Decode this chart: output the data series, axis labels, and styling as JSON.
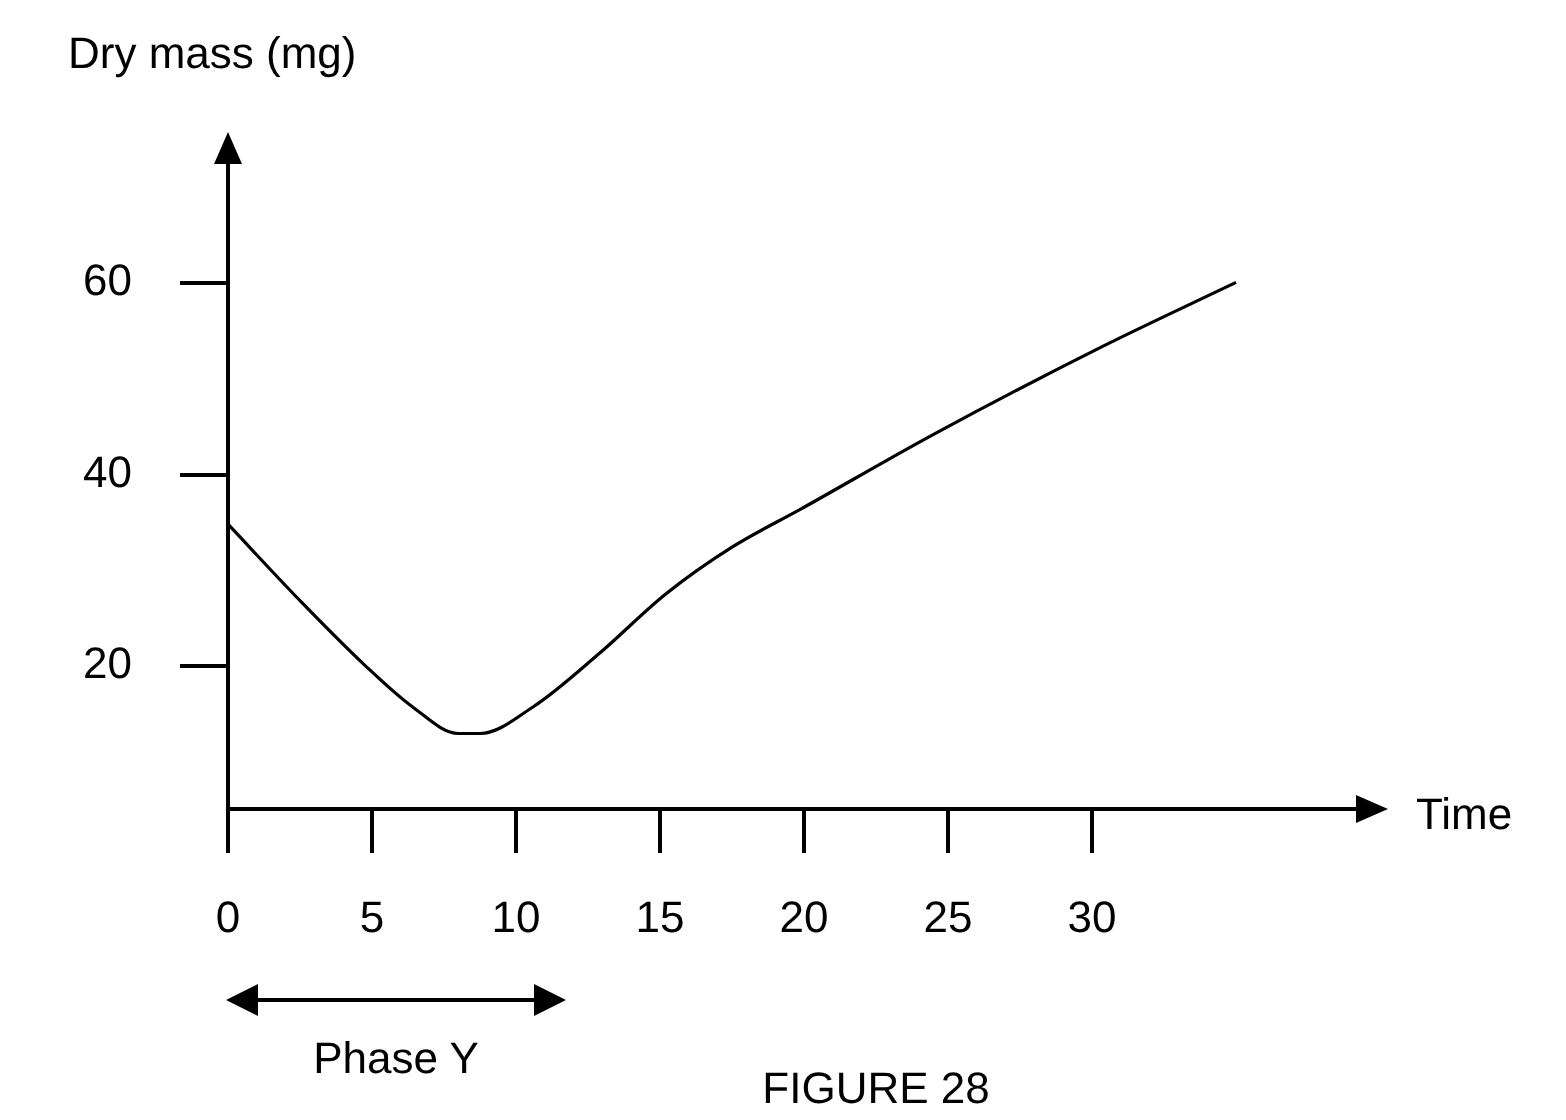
{
  "chart_data": {
    "type": "line",
    "xlabel": "Time",
    "ylabel": "Dry mass (mg)",
    "x": [
      0,
      2.5,
      4.8,
      6.4,
      8.0,
      8.75,
      10.6,
      12.9,
      15.2,
      17.5,
      19.9,
      24.5,
      30.3,
      35.0
    ],
    "series": [
      {
        "color": "#000000",
        "values": [
          34.8,
          26.8,
          19.9,
          15.7,
          12.9,
          12.9,
          15.7,
          21.3,
          27.5,
          32.4,
          36.4,
          44.2,
          53.3,
          60.1
        ]
      }
    ],
    "xlim": [
      0,
      40
    ],
    "xticks": [
      0,
      5,
      10,
      15,
      20,
      25,
      30
    ],
    "ylim": [
      5,
      75
    ],
    "yticks": [
      20,
      40,
      60
    ],
    "grid": false,
    "legend": false,
    "annotations": [
      "Phase Y",
      "FIGURE 28"
    ]
  }
}
